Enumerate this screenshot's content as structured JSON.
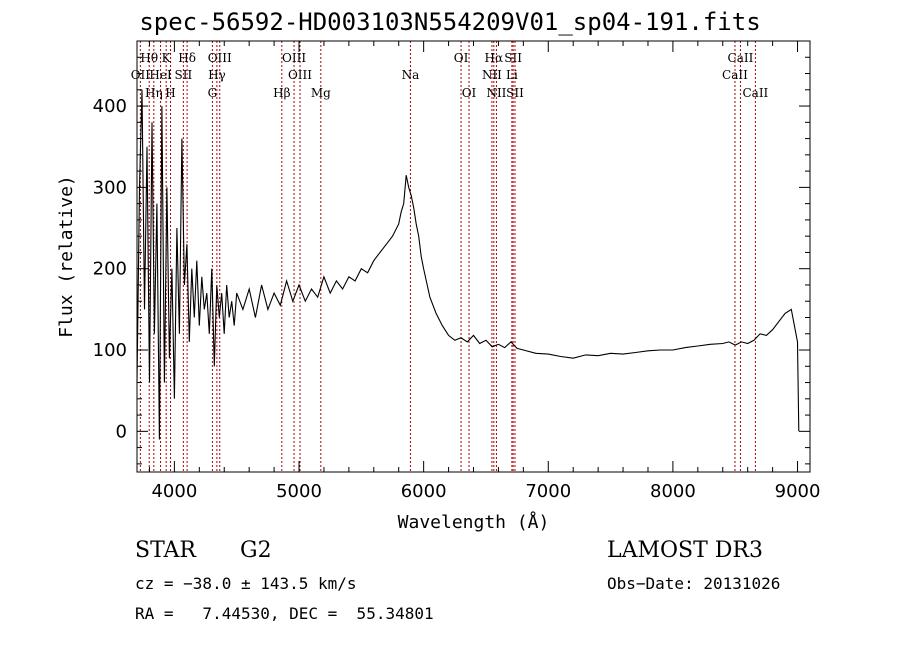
{
  "chart_data": {
    "type": "line",
    "title": "spec-56592-HD003103N554209V01_sp04-191.fits",
    "xlabel": "Wavelength (Å)",
    "ylabel": "Flux (relative)",
    "xlim": [
      3700,
      9100
    ],
    "ylim": [
      -50,
      480
    ],
    "x_ticks": [
      4000,
      5000,
      6000,
      7000,
      8000,
      9000
    ],
    "y_ticks": [
      0,
      100,
      200,
      300,
      400
    ],
    "series": [
      {
        "name": "flux",
        "x": [
          3700,
          3720,
          3740,
          3760,
          3780,
          3800,
          3820,
          3840,
          3860,
          3880,
          3900,
          3920,
          3940,
          3960,
          3980,
          4000,
          4020,
          4040,
          4060,
          4080,
          4100,
          4120,
          4140,
          4160,
          4180,
          4200,
          4220,
          4240,
          4260,
          4280,
          4300,
          4320,
          4340,
          4360,
          4380,
          4400,
          4420,
          4440,
          4460,
          4480,
          4500,
          4550,
          4600,
          4650,
          4700,
          4750,
          4800,
          4850,
          4900,
          4950,
          5000,
          5050,
          5100,
          5150,
          5200,
          5250,
          5300,
          5350,
          5400,
          5450,
          5500,
          5550,
          5600,
          5650,
          5700,
          5750,
          5800,
          5820,
          5840,
          5860,
          5880,
          5900,
          5920,
          5940,
          5960,
          5980,
          6000,
          6050,
          6100,
          6150,
          6200,
          6250,
          6300,
          6350,
          6400,
          6450,
          6500,
          6550,
          6600,
          6650,
          6700,
          6750,
          6800,
          6900,
          7000,
          7100,
          7200,
          7300,
          7400,
          7500,
          7600,
          7700,
          7800,
          7900,
          8000,
          8100,
          8200,
          8300,
          8400,
          8450,
          8500,
          8550,
          8600,
          8650,
          8700,
          8750,
          8800,
          8850,
          8900,
          8950,
          9000,
          9010
        ],
        "y": [
          60,
          300,
          420,
          150,
          350,
          60,
          380,
          120,
          280,
          -10,
          400,
          60,
          300,
          90,
          200,
          40,
          250,
          120,
          360,
          180,
          230,
          110,
          200,
          140,
          210,
          130,
          190,
          150,
          170,
          120,
          200,
          80,
          180,
          140,
          170,
          120,
          180,
          140,
          160,
          130,
          170,
          150,
          175,
          140,
          180,
          150,
          170,
          155,
          185,
          160,
          180,
          160,
          175,
          165,
          190,
          170,
          185,
          175,
          190,
          185,
          200,
          195,
          210,
          220,
          230,
          240,
          255,
          270,
          280,
          315,
          300,
          290,
          275,
          255,
          240,
          215,
          200,
          165,
          145,
          130,
          118,
          112,
          115,
          110,
          118,
          108,
          112,
          104,
          107,
          103,
          110,
          102,
          100,
          96,
          95,
          92,
          90,
          94,
          93,
          96,
          95,
          97,
          99,
          100,
          100,
          103,
          105,
          107,
          108,
          110,
          106,
          110,
          108,
          112,
          120,
          118,
          125,
          135,
          145,
          150,
          110,
          0
        ]
      }
    ],
    "lines": [
      {
        "label": "OII",
        "wavelength": 3727,
        "row": 2
      },
      {
        "label": "Hθ",
        "wavelength": 3798,
        "row": 1
      },
      {
        "label": "Hη",
        "wavelength": 3835,
        "row": 3
      },
      {
        "label": "K",
        "wavelength": 3934,
        "row": 1
      },
      {
        "label": "HeI",
        "wavelength": 3889,
        "row": 2
      },
      {
        "label": "H",
        "wavelength": 3969,
        "row": 3
      },
      {
        "label": "SII",
        "wavelength": 4072,
        "row": 2
      },
      {
        "label": "Hδ",
        "wavelength": 4102,
        "row": 1
      },
      {
        "label": "OIII",
        "wavelength": 4364,
        "row": 1
      },
      {
        "label": "Hγ",
        "wavelength": 4341,
        "row": 2
      },
      {
        "label": "G",
        "wavelength": 4305,
        "row": 3
      },
      {
        "label": "OIII",
        "wavelength": 4960,
        "row": 1
      },
      {
        "label": "OIII",
        "wavelength": 5008,
        "row": 2
      },
      {
        "label": "Hβ",
        "wavelength": 4862,
        "row": 3
      },
      {
        "label": "Mg",
        "wavelength": 5175,
        "row": 3
      },
      {
        "label": "Na",
        "wavelength": 5894,
        "row": 2
      },
      {
        "label": "OI",
        "wavelength": 6300,
        "row": 1
      },
      {
        "label": "OI",
        "wavelength": 6364,
        "row": 3
      },
      {
        "label": "Hα",
        "wavelength": 6563,
        "row": 1
      },
      {
        "label": "SII",
        "wavelength": 6718,
        "row": 1
      },
      {
        "label": "NII",
        "wavelength": 6548,
        "row": 2
      },
      {
        "label": "Li",
        "wavelength": 6708,
        "row": 2
      },
      {
        "label": "NII",
        "wavelength": 6584,
        "row": 3
      },
      {
        "label": "SII",
        "wavelength": 6733,
        "row": 3
      },
      {
        "label": "CaII",
        "wavelength": 8542,
        "row": 1
      },
      {
        "label": "CaII",
        "wavelength": 8498,
        "row": 2
      },
      {
        "label": "CaII",
        "wavelength": 8662,
        "row": 3
      }
    ]
  },
  "info": {
    "class": "STAR",
    "subclass": "G2",
    "survey": "LAMOST DR3",
    "cz": "cz = −38.0 ± 143.5 km/s",
    "obs_date": "Obs−Date: 20131026",
    "radec": "RA =   7.44530, DEC =  55.34801"
  },
  "colors": {
    "axis": "#000000",
    "spectrum": "#000000",
    "line_marker": "#b00000"
  }
}
